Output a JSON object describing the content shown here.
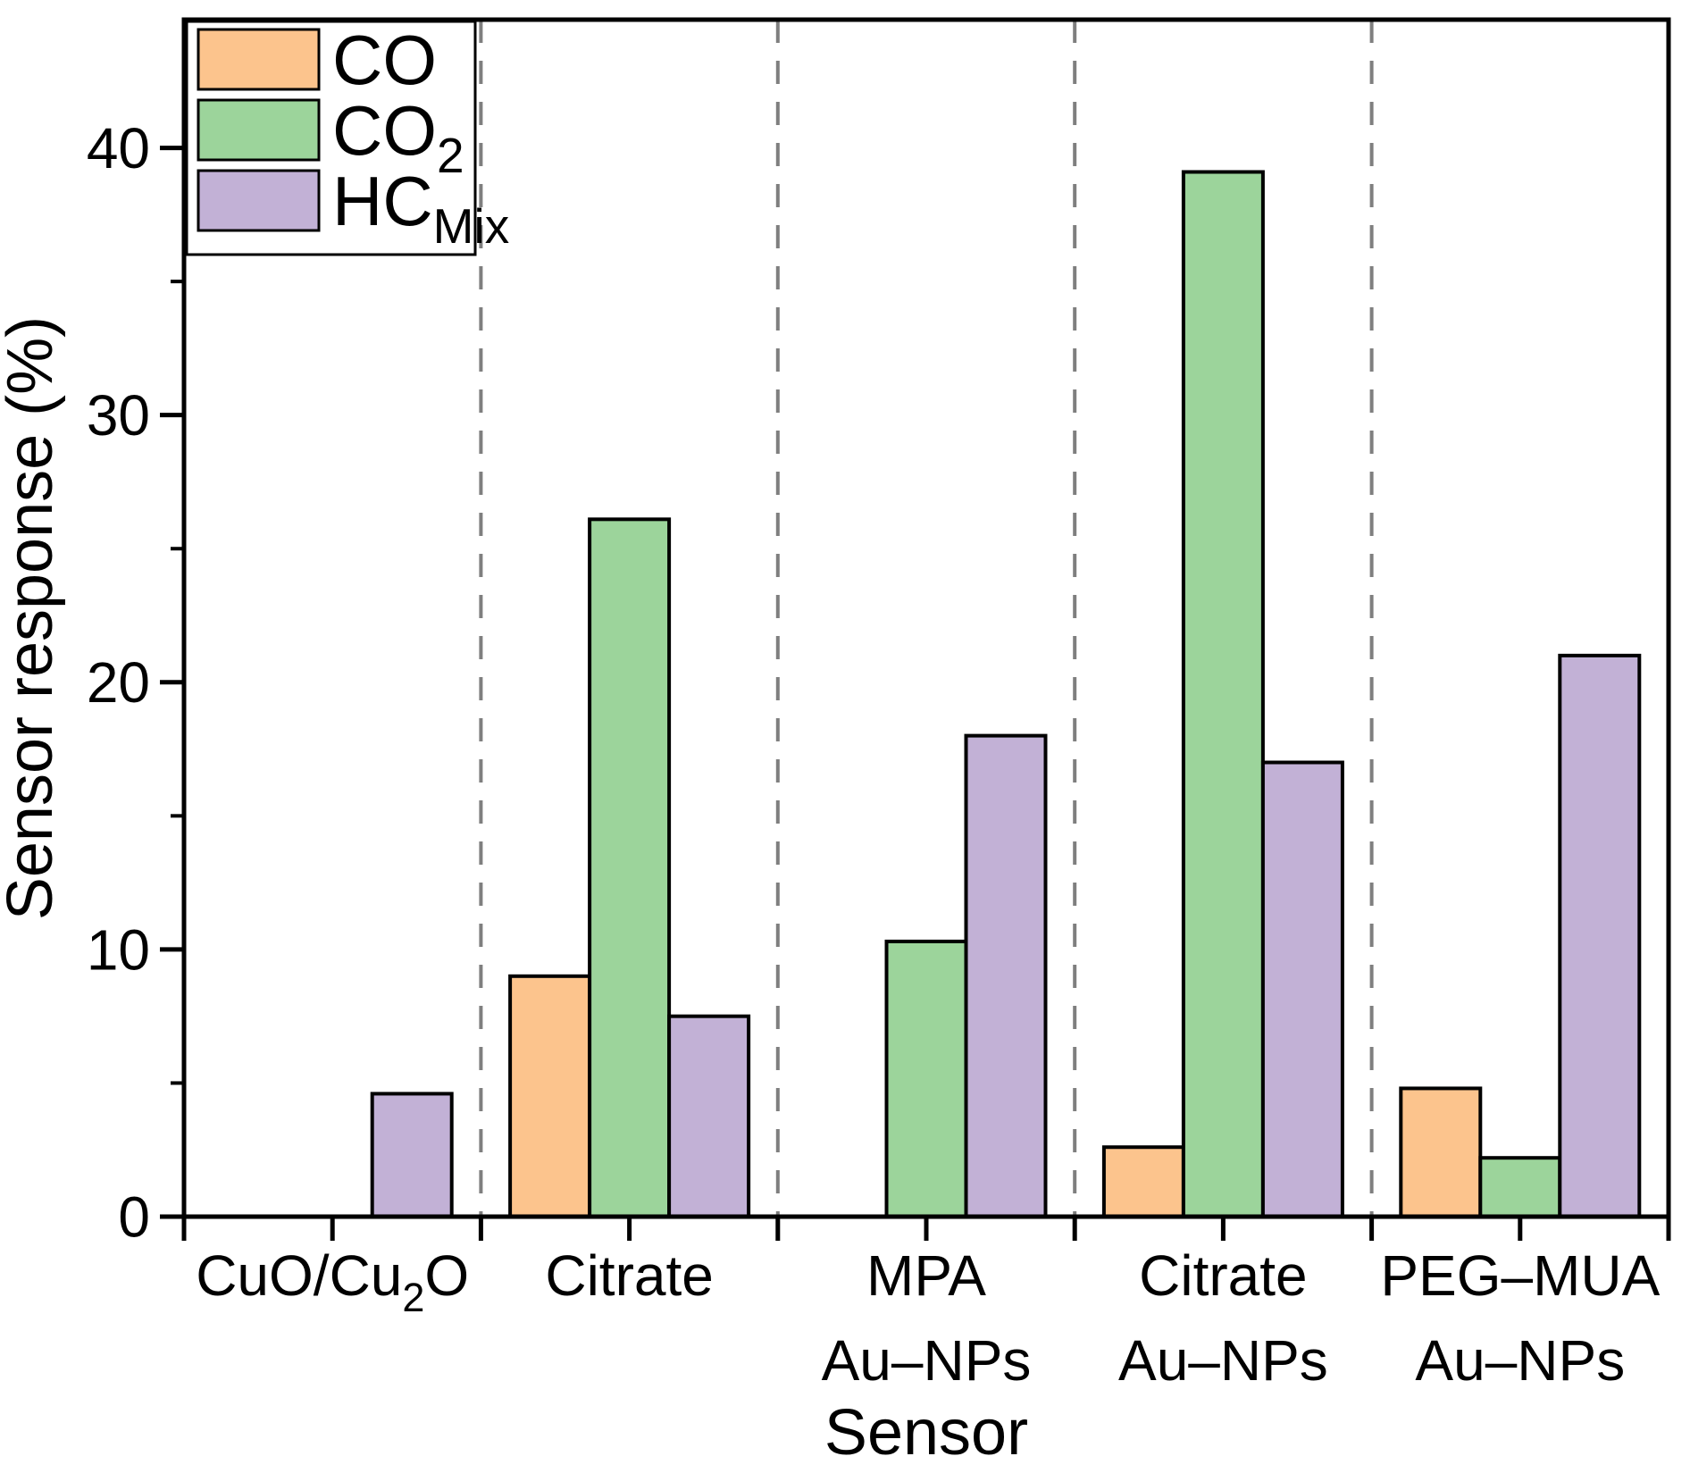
{
  "figure": {
    "background": "#ffffff"
  },
  "chart_data": {
    "type": "bar",
    "title": "",
    "xlabel": "Sensor",
    "ylabel": "Sensor response (%)",
    "ylim": [
      0,
      44.8
    ],
    "yticks_major": [
      0,
      10,
      20,
      30,
      40
    ],
    "yticks_minor": [
      5,
      15,
      25,
      35
    ],
    "grid": false,
    "legend_position": "top-left",
    "group_separators": "dashed-vertical-lines-between-groups",
    "separator_color": "#7f7f7f",
    "bar_edge_color": "#000000",
    "axis_color": "#000000",
    "categories": [
      "CuO/Cu2O",
      "Citrate",
      "MPA Au–NPs",
      "Citrate Au–NPs",
      "PEG–MUA Au–NPs"
    ],
    "category_label_lines": [
      {
        "lines": [
          [
            {
              "t": "CuO/Cu"
            },
            {
              "t": "2",
              "sub": true
            },
            {
              "t": "O"
            }
          ]
        ]
      },
      {
        "lines": [
          [
            {
              "t": "Citrate"
            }
          ]
        ]
      },
      {
        "lines": [
          [
            {
              "t": "MPA"
            }
          ],
          [
            {
              "t": "Au–NPs"
            }
          ]
        ]
      },
      {
        "lines": [
          [
            {
              "t": "Citrate"
            }
          ],
          [
            {
              "t": "Au–NPs"
            }
          ]
        ]
      },
      {
        "lines": [
          [
            {
              "t": "PEG–MUA"
            }
          ],
          [
            {
              "t": "Au–NPs"
            }
          ]
        ]
      }
    ],
    "series": [
      {
        "name": "CO",
        "color": "#FCC48D",
        "values": [
          0,
          9.0,
          0,
          2.6,
          4.8
        ]
      },
      {
        "name": "CO2",
        "color": "#9CD49B",
        "values": [
          0,
          26.1,
          10.3,
          39.1,
          2.2
        ]
      },
      {
        "name": "HCMix",
        "color": "#C2B1D6",
        "values": [
          4.6,
          7.5,
          18.0,
          17.0,
          21.0
        ]
      }
    ],
    "legend_labels": [
      {
        "segments": [
          {
            "t": "CO"
          }
        ]
      },
      {
        "segments": [
          {
            "t": "CO"
          },
          {
            "t": "2",
            "sub": true
          }
        ]
      },
      {
        "segments": [
          {
            "t": "HC"
          },
          {
            "t": "Mix",
            "sub": true
          }
        ]
      }
    ]
  }
}
